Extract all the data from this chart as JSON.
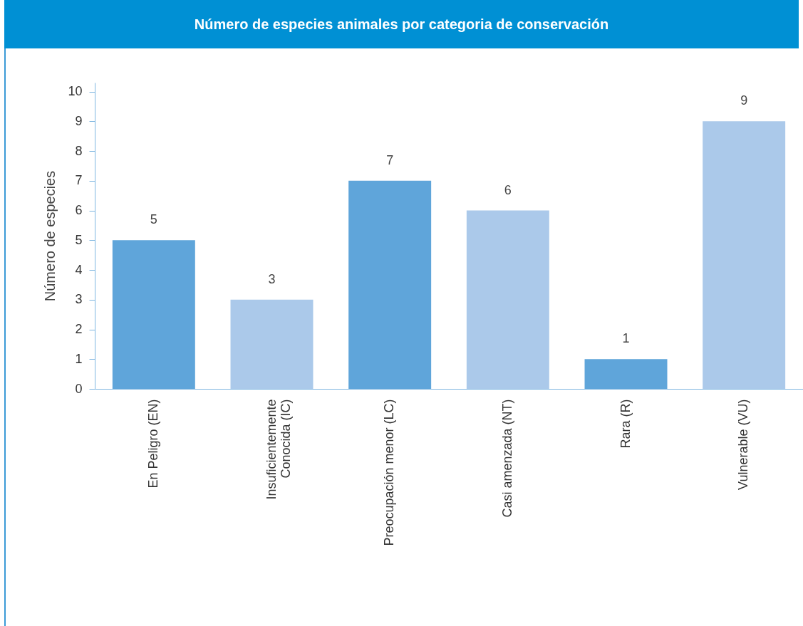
{
  "chart_data": {
    "type": "bar",
    "title": "Número de especies animales por categoria de conservación",
    "ylabel": "Número de especies",
    "categories": [
      "En Peligro (EN)",
      "Insuficientemente Conocida (IC)",
      "Preocupación menor (LC)",
      "Casi amenzada (NT)",
      "Rara (R)",
      "Vulnerable (VU)"
    ],
    "values": [
      5,
      3,
      7,
      6,
      1,
      9
    ],
    "colors": [
      "#5fa5da",
      "#abc9ea",
      "#5fa5da",
      "#abc9ea",
      "#5fa5da",
      "#abc9ea"
    ],
    "ylim": [
      0,
      10.3
    ],
    "yticks": [
      0,
      1,
      2,
      3,
      4,
      5,
      6,
      7,
      8,
      9,
      10
    ],
    "data_labels": true,
    "grid": false
  }
}
